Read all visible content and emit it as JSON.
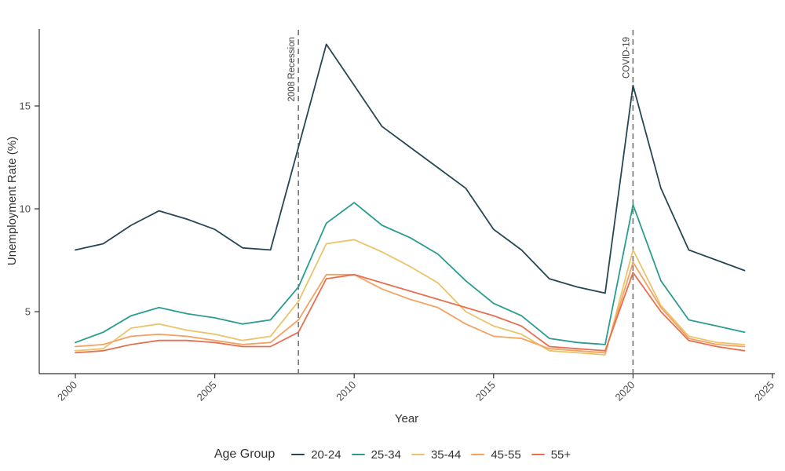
{
  "chart_data": {
    "type": "line",
    "title": "",
    "xlabel": "Year",
    "ylabel": "Unemployment Rate (%)",
    "legend_title": "Age Group",
    "legend_position": "bottom",
    "grid": false,
    "x": [
      2000,
      2001,
      2002,
      2003,
      2004,
      2005,
      2006,
      2007,
      2008,
      2009,
      2010,
      2011,
      2012,
      2013,
      2014,
      2015,
      2016,
      2017,
      2018,
      2019,
      2020,
      2021,
      2022,
      2023,
      2024
    ],
    "x_ticks": [
      2000,
      2005,
      2010,
      2015,
      2020,
      2025
    ],
    "y_ticks": [
      5,
      10,
      15
    ],
    "xlim": [
      1998.7,
      2025.4
    ],
    "ylim": [
      2.0,
      18.7
    ],
    "series": [
      {
        "name": "20-24",
        "color": "#264653",
        "values": [
          8.0,
          8.3,
          9.2,
          9.9,
          9.5,
          9.0,
          8.1,
          8.0,
          13.0,
          18.0,
          16.0,
          14.0,
          13.0,
          12.0,
          11.0,
          9.0,
          8.0,
          6.6,
          6.2,
          5.9,
          16.0,
          11.0,
          8.0,
          7.5,
          7.0
        ]
      },
      {
        "name": "25-34",
        "color": "#2a9d8f",
        "values": [
          3.5,
          4.0,
          4.8,
          5.2,
          4.9,
          4.7,
          4.4,
          4.6,
          6.2,
          9.3,
          10.3,
          9.2,
          8.6,
          7.8,
          6.5,
          5.4,
          4.8,
          3.7,
          3.5,
          3.4,
          10.2,
          6.5,
          4.6,
          4.3,
          4.0
        ]
      },
      {
        "name": "35-44",
        "color": "#e9c46a",
        "values": [
          3.1,
          3.2,
          4.2,
          4.4,
          4.1,
          3.9,
          3.6,
          3.8,
          5.5,
          8.3,
          8.5,
          7.9,
          7.2,
          6.4,
          5.0,
          4.3,
          3.9,
          3.1,
          3.0,
          2.9,
          8.0,
          5.3,
          3.8,
          3.5,
          3.4
        ]
      },
      {
        "name": "45-55",
        "color": "#f4a261",
        "values": [
          3.3,
          3.4,
          3.8,
          3.9,
          3.8,
          3.6,
          3.4,
          3.5,
          4.6,
          6.8,
          6.8,
          6.1,
          5.6,
          5.2,
          4.4,
          3.8,
          3.7,
          3.2,
          3.1,
          3.0,
          7.4,
          5.2,
          3.7,
          3.4,
          3.3
        ]
      },
      {
        "name": "55+",
        "color": "#e76f51",
        "values": [
          3.0,
          3.1,
          3.4,
          3.6,
          3.6,
          3.5,
          3.3,
          3.3,
          4.0,
          6.6,
          6.8,
          6.4,
          6.0,
          5.6,
          5.2,
          4.8,
          4.3,
          3.3,
          3.2,
          3.1,
          6.9,
          5.0,
          3.6,
          3.3,
          3.1
        ]
      }
    ],
    "annotations": [
      {
        "label": "2008 Recession",
        "year": 2008
      },
      {
        "label": "COVID-19",
        "year": 2020
      }
    ],
    "colors": {
      "axis_line": "#333333",
      "tick_text": "#4d4d4d",
      "dashed_line": "#7a7a7a",
      "background": "#ffffff"
    }
  }
}
